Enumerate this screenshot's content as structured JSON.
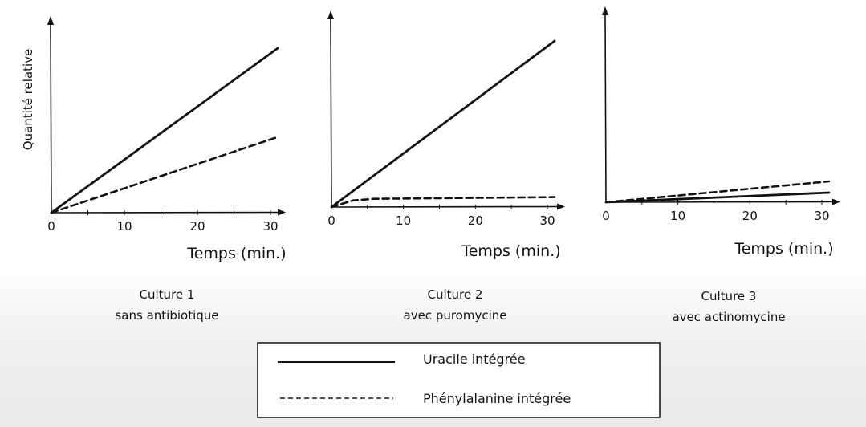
{
  "figure": {
    "ylabel": "Quantité relative",
    "legend": {
      "solid_label": "Uracile intégrée",
      "dashed_label": "Phénylalanine intégrée"
    }
  },
  "chart_data": [
    {
      "type": "line",
      "title": "Culture 1",
      "subtitle": "sans antibiotique",
      "xlabel": "Temps (min.)",
      "ylabel": "Quantité relative",
      "xlim": [
        0,
        31
      ],
      "ylim": [
        0,
        1
      ],
      "xticks": [
        "0",
        "10",
        "20",
        "30"
      ],
      "grid": false,
      "series": [
        {
          "name": "Uracile intégrée",
          "style": "solid",
          "x": [
            0,
            31
          ],
          "y": [
            0,
            1.0
          ]
        },
        {
          "name": "Phénylalanine intégrée",
          "style": "dashed",
          "x": [
            0,
            31
          ],
          "y": [
            0,
            0.46
          ]
        }
      ]
    },
    {
      "type": "line",
      "title": "Culture 2",
      "subtitle": "avec puromycine",
      "xlabel": "Temps (min.)",
      "ylabel": "",
      "xlim": [
        0,
        31
      ],
      "ylim": [
        0,
        1
      ],
      "xticks": [
        "0",
        "10",
        "20",
        "30"
      ],
      "grid": false,
      "series": [
        {
          "name": "Uracile intégrée",
          "style": "solid",
          "x": [
            0,
            31
          ],
          "y": [
            0,
            1.0
          ]
        },
        {
          "name": "Phénylalanine intégrée",
          "style": "dashed",
          "x": [
            0,
            3,
            6,
            31
          ],
          "y": [
            0,
            0.04,
            0.05,
            0.06
          ]
        }
      ]
    },
    {
      "type": "line",
      "title": "Culture 3",
      "subtitle": "avec actinomycine",
      "xlabel": "Temps (min.)",
      "ylabel": "",
      "xlim": [
        0,
        31
      ],
      "ylim": [
        0,
        1
      ],
      "xticks": [
        "0",
        "10",
        "20",
        "30"
      ],
      "grid": false,
      "series": [
        {
          "name": "Uracile intégrée",
          "style": "solid",
          "x": [
            0,
            31
          ],
          "y": [
            0,
            0.06
          ]
        },
        {
          "name": "Phénylalanine intégrée",
          "style": "dashed",
          "x": [
            0,
            31
          ],
          "y": [
            0,
            0.13
          ]
        }
      ]
    }
  ]
}
